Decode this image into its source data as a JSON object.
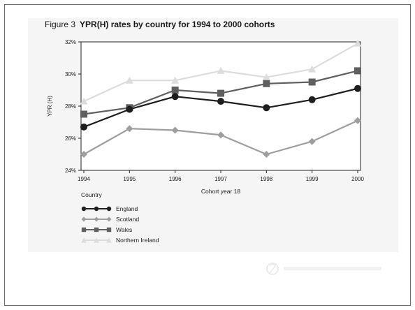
{
  "figure": {
    "number": "Figure 3",
    "title": "YPR(H) rates by country for 1994 to 2000 cohorts"
  },
  "legend": {
    "title": "Country"
  },
  "chart_data": {
    "type": "line",
    "title": "YPR(H) rates by country for 1994 to 2000 cohorts",
    "xlabel": "Cohort year 18",
    "ylabel": "YPR (H)",
    "categories": [
      "1994",
      "1995",
      "1996",
      "1997",
      "1998",
      "1999",
      "2000"
    ],
    "ylim": [
      24,
      32
    ],
    "yticks": [
      "24%",
      "26%",
      "28%",
      "30%",
      "32%"
    ],
    "grid": false,
    "legend_placement": "bottom-left",
    "series": [
      {
        "name": "England",
        "values": [
          26.7,
          27.8,
          28.6,
          28.3,
          27.9,
          28.4,
          29.1
        ],
        "color": "#1e1e1e",
        "marker": "circle"
      },
      {
        "name": "Scotland",
        "values": [
          25.0,
          26.6,
          26.5,
          26.2,
          25.0,
          25.8,
          27.1
        ],
        "color": "#9e9e9e",
        "marker": "diamond"
      },
      {
        "name": "Wales",
        "values": [
          27.5,
          27.9,
          29.0,
          28.8,
          29.4,
          29.5,
          30.2
        ],
        "color": "#5f5f5f",
        "marker": "square"
      },
      {
        "name": "Northern Ireland",
        "values": [
          28.3,
          29.6,
          29.6,
          30.2,
          29.8,
          30.3,
          31.9
        ],
        "color": "#dcdcdc",
        "marker": "triangle"
      }
    ]
  }
}
